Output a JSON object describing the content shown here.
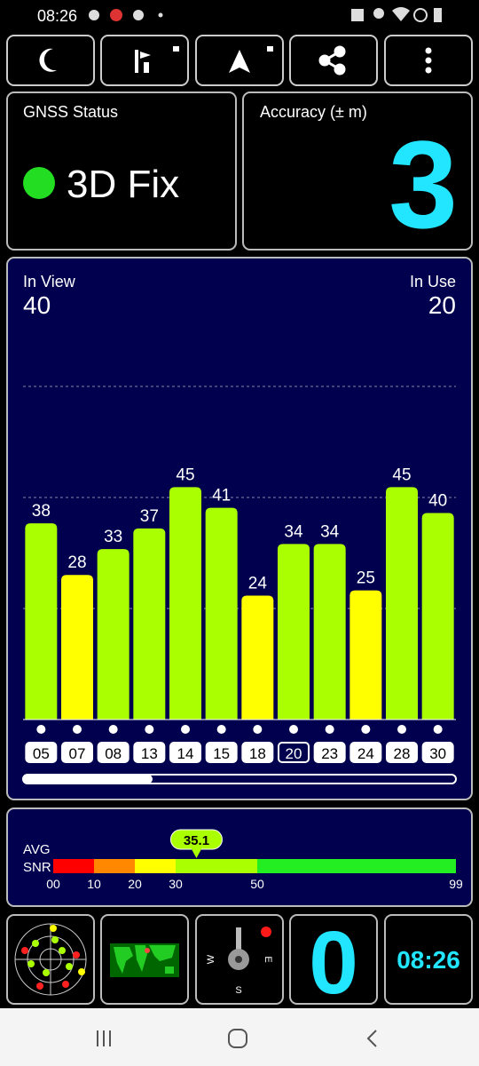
{
  "status_bar": {
    "time": "08:26"
  },
  "gnss_status": {
    "title": "GNSS Status",
    "fix": "3D Fix",
    "color": "#22dd22"
  },
  "accuracy": {
    "title": "Accuracy (± m)",
    "value": 3
  },
  "satellites": {
    "in_view_label": "In View",
    "in_view": 40,
    "in_use_label": "In Use",
    "in_use": 20,
    "categories": [
      "05",
      "07",
      "08",
      "13",
      "14",
      "15",
      "18",
      "20",
      "23",
      "24",
      "28",
      "30"
    ],
    "values": [
      38,
      28,
      33,
      37,
      45,
      41,
      24,
      34,
      34,
      25,
      45,
      40
    ],
    "colors": [
      "#aaff00",
      "#ffff00",
      "#aaff00",
      "#aaff00",
      "#aaff00",
      "#aaff00",
      "#ffff00",
      "#aaff00",
      "#aaff00",
      "#ffff00",
      "#aaff00",
      "#aaff00"
    ],
    "selected": 7,
    "ylim": [
      0,
      86
    ],
    "yticks": [
      21.5,
      43,
      64.5
    ]
  },
  "snr": {
    "label_top": "AVG",
    "label_bottom": "SNR",
    "avg": 35.1,
    "ticks": [
      {
        "value": 0,
        "label": "00"
      },
      10,
      20,
      30,
      50,
      99
    ],
    "colors": [
      "#ff0000",
      "#ff8800",
      "#ffff00",
      "#aaff00",
      "#22ee22"
    ]
  },
  "tiles": {
    "speed": 0,
    "time": "08:26",
    "compass": [
      "W",
      "E",
      "S"
    ]
  }
}
